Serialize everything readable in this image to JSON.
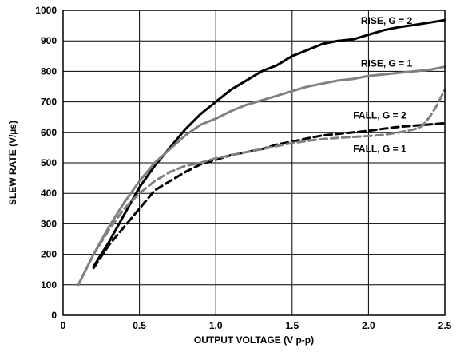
{
  "chart_data": {
    "type": "line",
    "title": "",
    "xlabel": "OUTPUT VOLTAGE (V p-p)",
    "ylabel": "SLEW RATE (V/µs)",
    "xlim": [
      0,
      2.5
    ],
    "ylim": [
      0,
      1000
    ],
    "x_ticks": [
      0,
      0.5,
      1.0,
      1.5,
      2.0,
      2.5
    ],
    "x_tick_labels": [
      "0",
      "0.5",
      "1.0",
      "1.5",
      "2.0",
      "2.5"
    ],
    "y_ticks": [
      0,
      100,
      200,
      300,
      400,
      500,
      600,
      700,
      800,
      900,
      1000
    ],
    "y_tick_labels": [
      "0",
      "100",
      "200",
      "300",
      "400",
      "500",
      "600",
      "700",
      "800",
      "900",
      "1000"
    ],
    "grid": true,
    "series": [
      {
        "name": "RISE, G = 2",
        "color": "#000000",
        "dash": "solid",
        "points": [
          [
            0.2,
            160
          ],
          [
            0.3,
            240
          ],
          [
            0.4,
            330
          ],
          [
            0.5,
            420
          ],
          [
            0.6,
            490
          ],
          [
            0.7,
            550
          ],
          [
            0.8,
            610
          ],
          [
            0.9,
            660
          ],
          [
            1.0,
            700
          ],
          [
            1.1,
            740
          ],
          [
            1.2,
            770
          ],
          [
            1.3,
            800
          ],
          [
            1.4,
            820
          ],
          [
            1.5,
            850
          ],
          [
            1.6,
            870
          ],
          [
            1.7,
            890
          ],
          [
            1.8,
            900
          ],
          [
            1.9,
            905
          ],
          [
            2.0,
            920
          ],
          [
            2.1,
            935
          ],
          [
            2.2,
            945
          ],
          [
            2.3,
            952
          ],
          [
            2.4,
            960
          ],
          [
            2.5,
            968
          ]
        ]
      },
      {
        "name": "RISE, G = 1",
        "color": "#808080",
        "dash": "solid",
        "points": [
          [
            0.1,
            100
          ],
          [
            0.2,
            200
          ],
          [
            0.3,
            290
          ],
          [
            0.4,
            370
          ],
          [
            0.5,
            440
          ],
          [
            0.6,
            500
          ],
          [
            0.7,
            545
          ],
          [
            0.8,
            590
          ],
          [
            0.9,
            625
          ],
          [
            1.0,
            645
          ],
          [
            1.1,
            670
          ],
          [
            1.2,
            690
          ],
          [
            1.3,
            705
          ],
          [
            1.4,
            720
          ],
          [
            1.5,
            735
          ],
          [
            1.6,
            750
          ],
          [
            1.7,
            760
          ],
          [
            1.8,
            770
          ],
          [
            1.9,
            775
          ],
          [
            2.0,
            785
          ],
          [
            2.1,
            790
          ],
          [
            2.2,
            795
          ],
          [
            2.3,
            800
          ],
          [
            2.4,
            805
          ],
          [
            2.5,
            815
          ]
        ]
      },
      {
        "name": "FALL, G = 2",
        "color": "#000000",
        "dash": "dashed",
        "points": [
          [
            0.2,
            155
          ],
          [
            0.3,
            230
          ],
          [
            0.4,
            290
          ],
          [
            0.5,
            350
          ],
          [
            0.6,
            410
          ],
          [
            0.7,
            440
          ],
          [
            0.8,
            470
          ],
          [
            0.9,
            495
          ],
          [
            1.0,
            510
          ],
          [
            1.1,
            525
          ],
          [
            1.2,
            535
          ],
          [
            1.3,
            545
          ],
          [
            1.4,
            560
          ],
          [
            1.5,
            570
          ],
          [
            1.6,
            580
          ],
          [
            1.7,
            590
          ],
          [
            1.8,
            595
          ],
          [
            1.9,
            600
          ],
          [
            2.0,
            605
          ],
          [
            2.1,
            612
          ],
          [
            2.2,
            618
          ],
          [
            2.3,
            622
          ],
          [
            2.4,
            626
          ],
          [
            2.5,
            630
          ]
        ]
      },
      {
        "name": "FALL, G = 1",
        "color": "#808080",
        "dash": "dashed",
        "points": [
          [
            0.1,
            100
          ],
          [
            0.2,
            200
          ],
          [
            0.3,
            280
          ],
          [
            0.4,
            350
          ],
          [
            0.5,
            400
          ],
          [
            0.6,
            440
          ],
          [
            0.7,
            470
          ],
          [
            0.8,
            490
          ],
          [
            0.9,
            500
          ],
          [
            1.0,
            515
          ],
          [
            1.1,
            525
          ],
          [
            1.2,
            535
          ],
          [
            1.3,
            545
          ],
          [
            1.4,
            555
          ],
          [
            1.5,
            565
          ],
          [
            1.6,
            572
          ],
          [
            1.7,
            578
          ],
          [
            1.8,
            582
          ],
          [
            1.9,
            585
          ],
          [
            2.0,
            588
          ],
          [
            2.1,
            592
          ],
          [
            2.2,
            600
          ],
          [
            2.3,
            610
          ],
          [
            2.35,
            620
          ],
          [
            2.4,
            650
          ],
          [
            2.45,
            690
          ],
          [
            2.5,
            740
          ]
        ]
      }
    ],
    "annotations": [
      {
        "text": "RISE, G = 2",
        "x": 1.95,
        "y": 955
      },
      {
        "text": "RISE, G = 1",
        "x": 1.95,
        "y": 815
      },
      {
        "text": "FALL, G = 2",
        "x": 1.9,
        "y": 645
      },
      {
        "text": "FALL, G = 1",
        "x": 1.9,
        "y": 535
      }
    ]
  }
}
